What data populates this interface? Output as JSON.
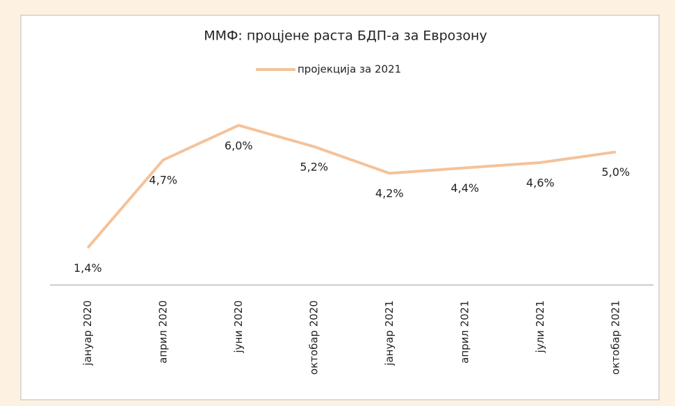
{
  "chart_data": {
    "type": "line",
    "title": "ММФ: процјене раста БДП-а за Еврозону",
    "categories": [
      "јануар 2020",
      "април 2020",
      "јуни 2020",
      "октобар 2020",
      "јануар 2021",
      "април 2021",
      "јули 2021",
      "октобар 2021"
    ],
    "series": [
      {
        "name": "пројекција за 2021",
        "color": "#f4c29a",
        "values": [
          1.4,
          4.7,
          6.0,
          5.2,
          4.2,
          4.4,
          4.6,
          5.0
        ],
        "value_labels": [
          "1,4%",
          "4,7%",
          "6,0%",
          "5,2%",
          "4,2%",
          "4,4%",
          "4,6%",
          "5,0%"
        ]
      }
    ],
    "ylim": [
      0,
      7
    ],
    "legend": "top"
  }
}
